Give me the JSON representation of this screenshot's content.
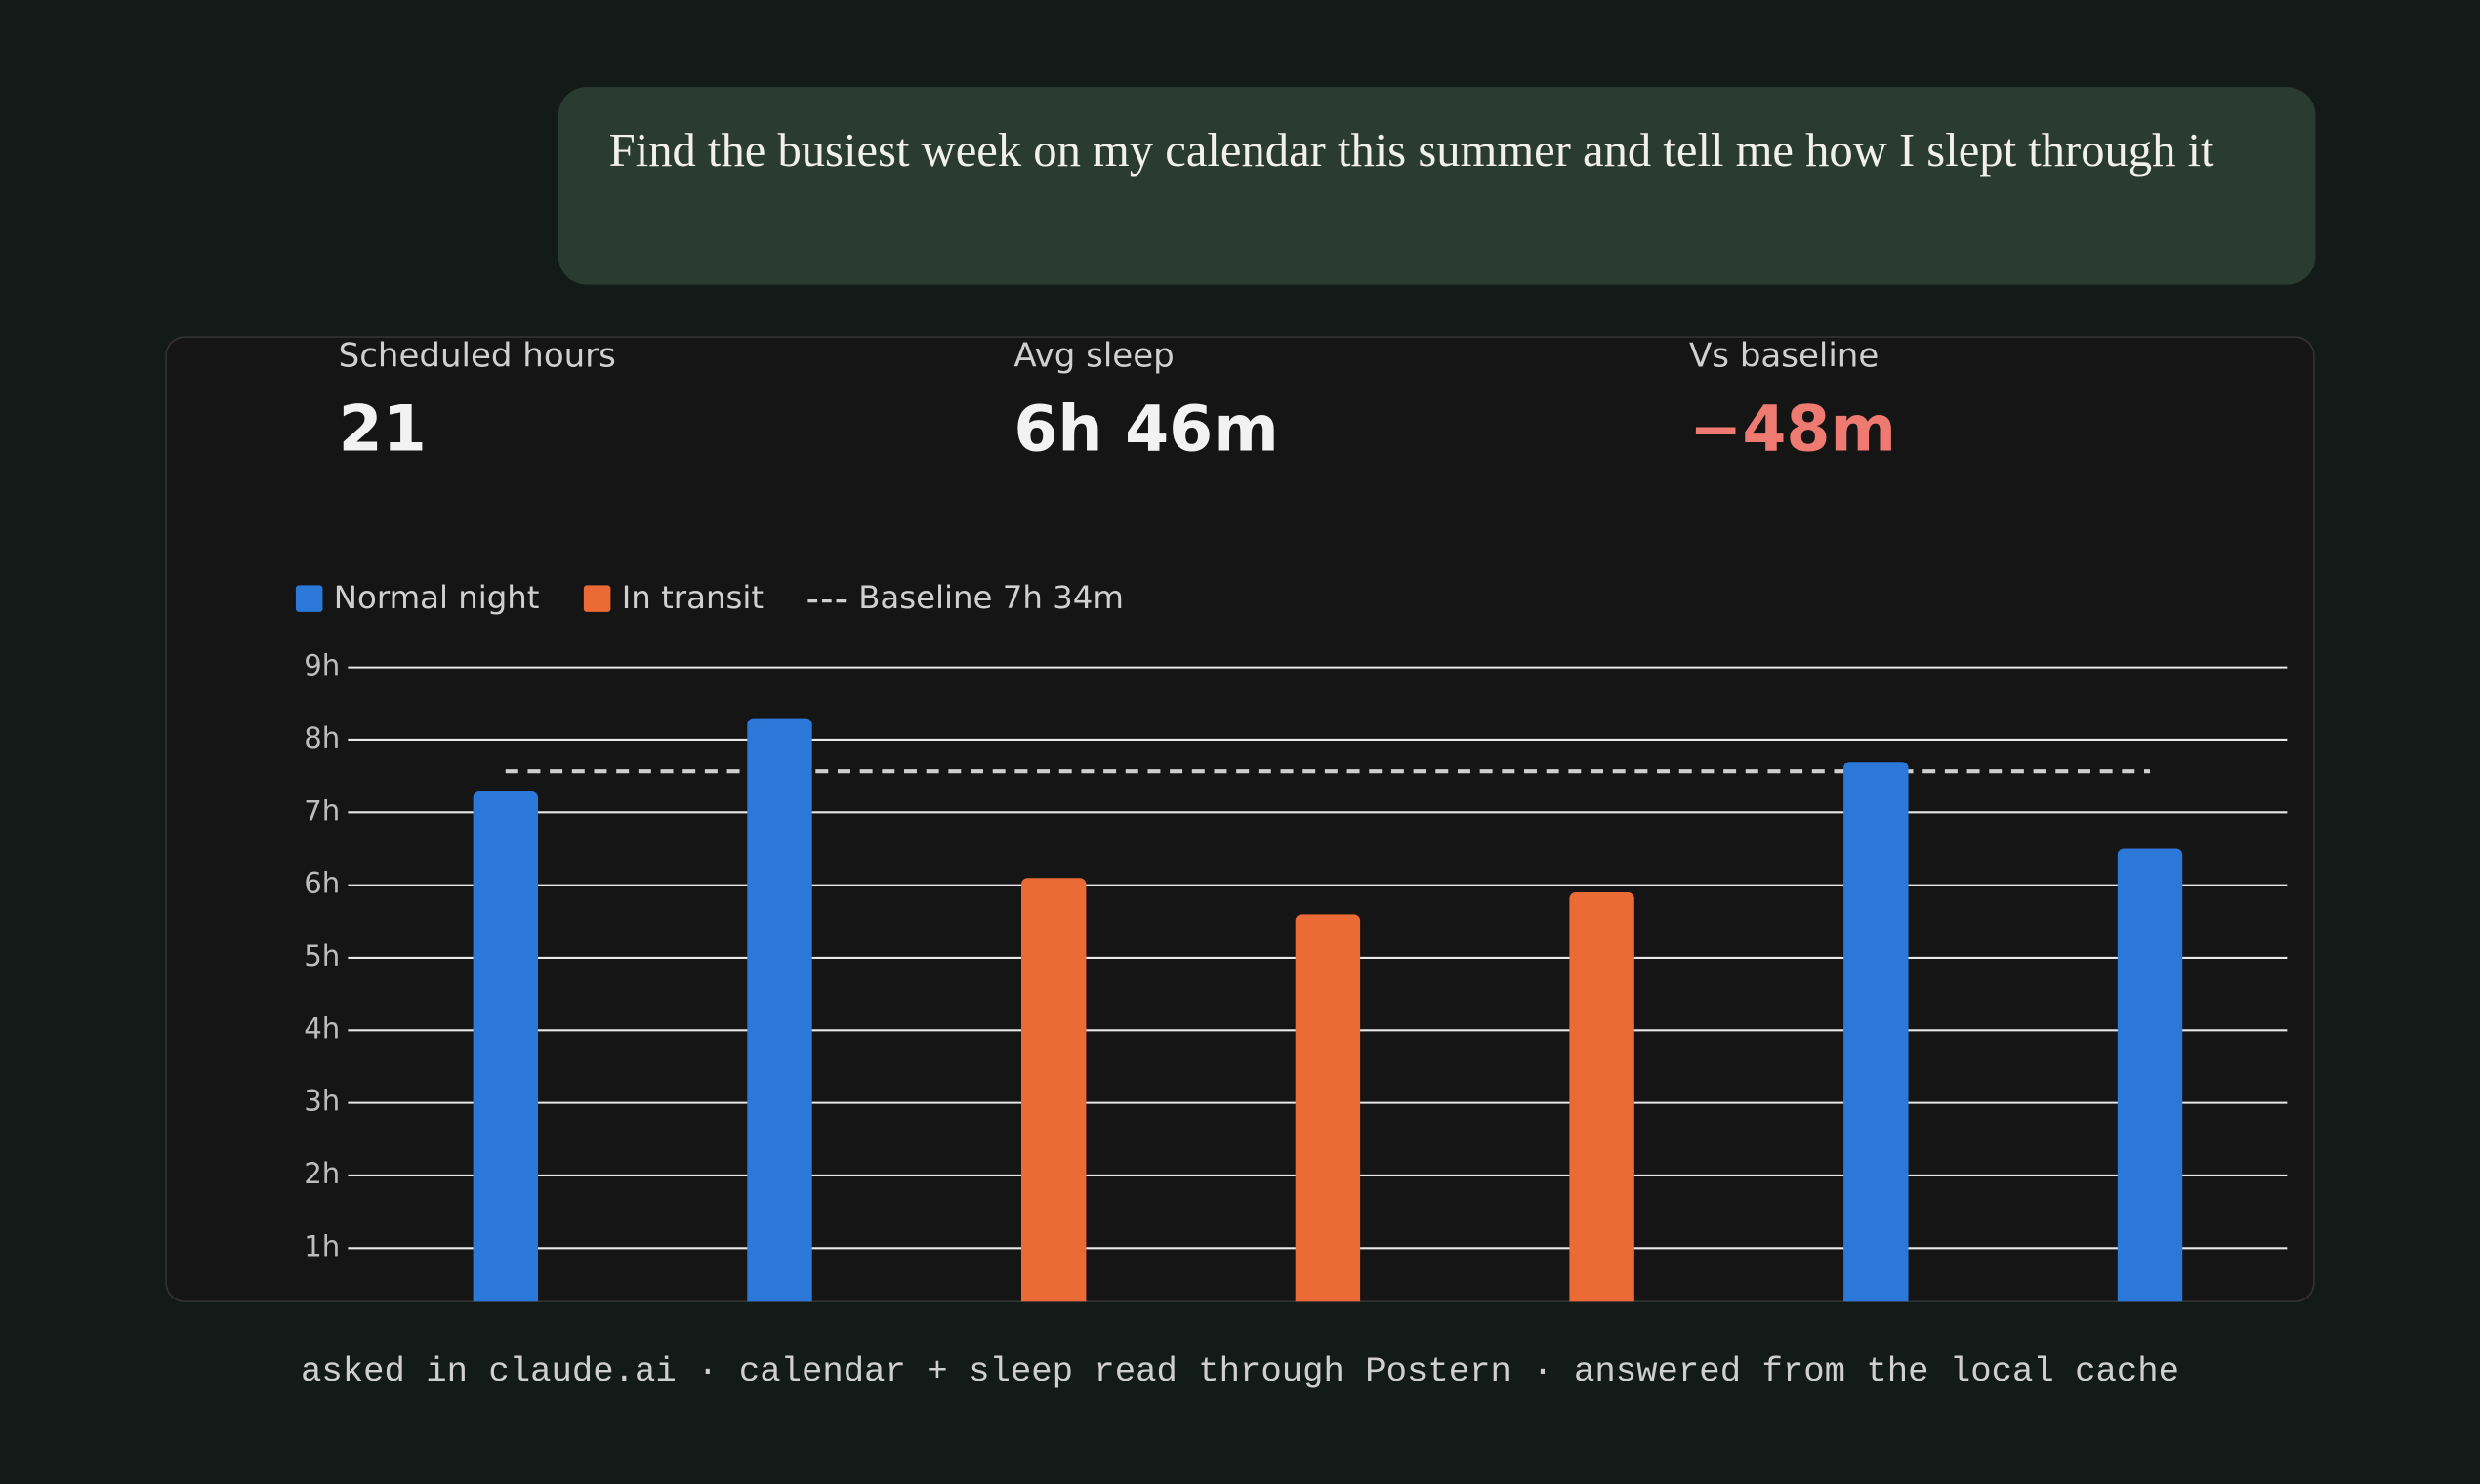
{
  "message": {
    "text": "Find the busiest week on my calendar this summer and tell me how I slept through it"
  },
  "stats": [
    {
      "label": "Scheduled hours",
      "value": "21"
    },
    {
      "label": "Avg sleep",
      "value": "6h 46m"
    },
    {
      "label": "Vs baseline",
      "value": "−48m"
    }
  ],
  "chart_data": {
    "type": "bar",
    "categories": [
      null,
      null,
      null,
      null,
      null,
      null,
      null
    ],
    "series": [
      {
        "name": "Normal night",
        "color": "#2b78d9",
        "values": [
          7.3,
          8.3,
          null,
          null,
          null,
          7.7,
          6.5
        ]
      },
      {
        "name": "In transit",
        "color": "#eb6a35",
        "values": [
          null,
          null,
          6.1,
          5.6,
          5.9,
          null,
          null
        ]
      }
    ],
    "baseline": {
      "label": "Baseline 7h 34m",
      "value": 7.5667
    },
    "ylim": [
      0,
      9
    ],
    "yticks": [
      {
        "value": 1,
        "label": "1h"
      },
      {
        "value": 2,
        "label": "2h"
      },
      {
        "value": 3,
        "label": "3h"
      },
      {
        "value": 4,
        "label": "4h"
      },
      {
        "value": 5,
        "label": "5h"
      },
      {
        "value": 6,
        "label": "6h"
      },
      {
        "value": 7,
        "label": "7h"
      },
      {
        "value": 8,
        "label": "8h"
      },
      {
        "value": 9,
        "label": "9h"
      }
    ],
    "grid": true
  },
  "footer": {
    "text": "asked in claude.ai · calendar + sleep read through Postern · answered from the local cache"
  }
}
